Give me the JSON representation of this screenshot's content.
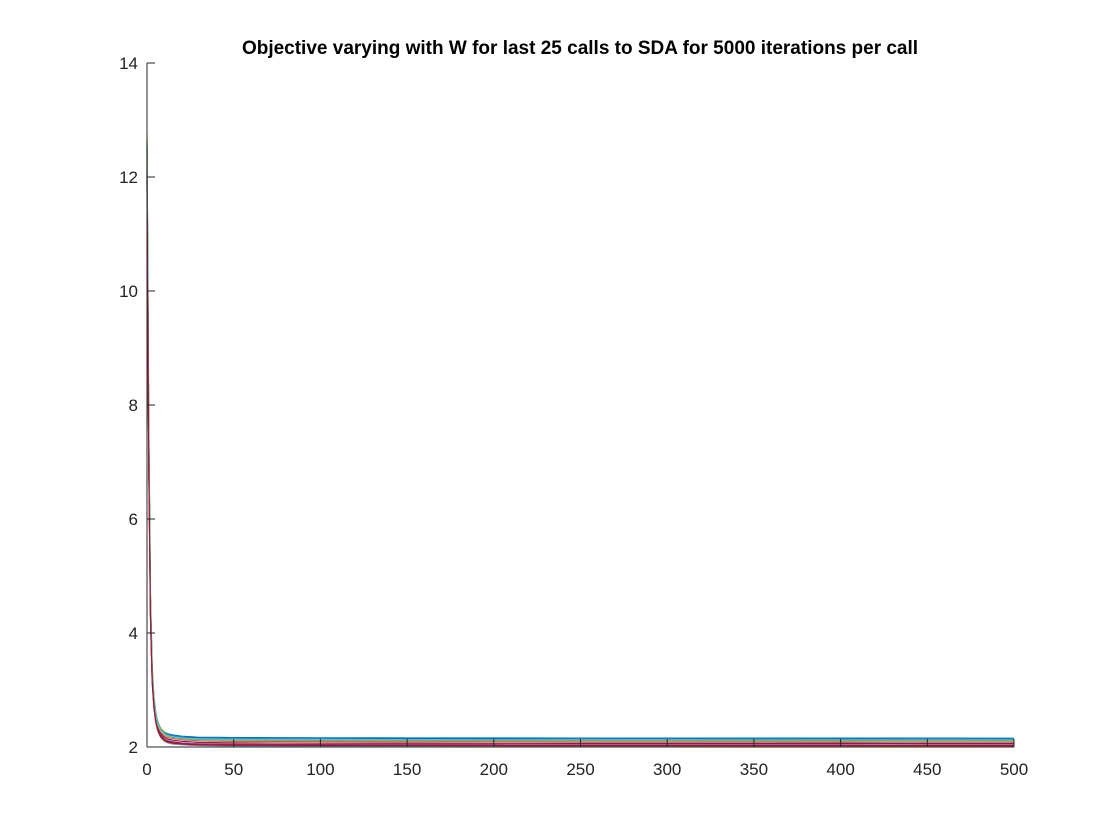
{
  "chart_data": {
    "type": "line",
    "title": "Objective varying with W for last 25 calls to SDA for 5000 iterations per call",
    "xlabel": "",
    "ylabel": "",
    "xlim": [
      0,
      500
    ],
    "ylim": [
      2,
      14
    ],
    "xticks": [
      0,
      50,
      100,
      150,
      200,
      250,
      300,
      350,
      400,
      450,
      500
    ],
    "yticks": [
      2,
      4,
      6,
      8,
      10,
      12,
      14
    ],
    "grid": false,
    "legend": "none",
    "x": [
      0,
      1,
      2,
      3,
      4,
      5,
      6,
      7,
      8,
      10,
      12,
      15,
      20,
      25,
      30,
      40,
      50,
      75,
      100,
      150,
      200,
      250,
      300,
      350,
      400,
      450,
      500
    ],
    "series": [
      {
        "color": "#0072bd",
        "values": [
          12.6,
          7.6,
          4.6,
          3.35,
          2.85,
          2.6,
          2.46,
          2.38,
          2.32,
          2.26,
          2.23,
          2.21,
          2.19,
          2.18,
          2.17,
          2.17,
          2.166,
          2.163,
          2.161,
          2.159,
          2.158,
          2.157,
          2.156,
          2.156,
          2.155,
          2.155,
          2.154
        ]
      },
      {
        "color": "#d95319",
        "values": [
          12.4,
          7.4,
          4.5,
          3.28,
          2.8,
          2.56,
          2.42,
          2.34,
          2.28,
          2.22,
          2.19,
          2.17,
          2.15,
          2.14,
          2.13,
          2.128,
          2.124,
          2.121,
          2.119,
          2.117,
          2.116,
          2.115,
          2.114,
          2.114,
          2.113,
          2.113,
          2.112
        ]
      },
      {
        "color": "#edb120",
        "values": [
          12.0,
          7.1,
          4.3,
          3.15,
          2.7,
          2.46,
          2.32,
          2.24,
          2.18,
          2.12,
          2.09,
          2.07,
          2.06,
          2.05,
          2.045,
          2.04,
          2.037,
          2.035,
          2.033,
          2.032,
          2.031,
          2.03,
          2.03,
          2.029,
          2.029,
          2.028,
          2.028
        ]
      },
      {
        "color": "#7e2f8e",
        "values": [
          12.2,
          7.3,
          4.45,
          3.25,
          2.78,
          2.54,
          2.4,
          2.32,
          2.26,
          2.2,
          2.17,
          2.15,
          2.13,
          2.12,
          2.11,
          2.105,
          2.101,
          2.098,
          2.096,
          2.094,
          2.093,
          2.092,
          2.091,
          2.091,
          2.09,
          2.09,
          2.089
        ]
      },
      {
        "color": "#77ac30",
        "values": [
          12.75,
          7.8,
          4.7,
          3.4,
          2.88,
          2.62,
          2.47,
          2.38,
          2.32,
          2.25,
          2.21,
          2.18,
          2.16,
          2.15,
          2.14,
          2.136,
          2.132,
          2.129,
          2.127,
          2.125,
          2.124,
          2.123,
          2.122,
          2.122,
          2.121,
          2.121,
          2.12
        ]
      },
      {
        "color": "#4dbeee",
        "values": [
          11.8,
          7.0,
          4.25,
          3.12,
          2.68,
          2.44,
          2.3,
          2.22,
          2.16,
          2.1,
          2.07,
          2.05,
          2.04,
          2.03,
          2.025,
          2.021,
          2.018,
          2.016,
          2.015,
          2.014,
          2.013,
          2.012,
          2.012,
          2.011,
          2.011,
          2.011,
          2.01
        ]
      },
      {
        "color": "#a2142f",
        "values": [
          12.1,
          7.2,
          4.4,
          3.22,
          2.75,
          2.51,
          2.37,
          2.29,
          2.23,
          2.17,
          2.14,
          2.12,
          2.1,
          2.09,
          2.08,
          2.076,
          2.072,
          2.069,
          2.067,
          2.066,
          2.065,
          2.064,
          2.064,
          2.063,
          2.063,
          2.062,
          2.062
        ]
      },
      {
        "color": "#0072bd",
        "values": [
          12.5,
          7.5,
          4.55,
          3.3,
          2.82,
          2.58,
          2.44,
          2.36,
          2.3,
          2.24,
          2.21,
          2.19,
          2.17,
          2.16,
          2.155,
          2.15,
          2.146,
          2.143,
          2.141,
          2.139,
          2.138,
          2.137,
          2.137,
          2.136,
          2.136,
          2.135,
          2.135
        ]
      },
      {
        "color": "#d95319",
        "values": [
          11.9,
          7.05,
          4.28,
          3.14,
          2.69,
          2.45,
          2.31,
          2.23,
          2.17,
          2.11,
          2.08,
          2.06,
          2.05,
          2.04,
          2.035,
          2.031,
          2.028,
          2.026,
          2.024,
          2.023,
          2.022,
          2.021,
          2.021,
          2.02,
          2.02,
          2.02,
          2.019
        ]
      },
      {
        "color": "#edb120",
        "values": [
          12.3,
          7.35,
          4.48,
          3.27,
          2.79,
          2.55,
          2.41,
          2.33,
          2.27,
          2.21,
          2.18,
          2.16,
          2.14,
          2.13,
          2.12,
          2.116,
          2.112,
          2.109,
          2.107,
          2.105,
          2.104,
          2.103,
          2.103,
          2.102,
          2.102,
          2.101,
          2.101
        ]
      },
      {
        "color": "#7e2f8e",
        "values": [
          12.05,
          7.15,
          4.35,
          3.18,
          2.72,
          2.48,
          2.34,
          2.26,
          2.2,
          2.14,
          2.11,
          2.09,
          2.07,
          2.06,
          2.055,
          2.05,
          2.046,
          2.043,
          2.041,
          2.04,
          2.039,
          2.038,
          2.038,
          2.037,
          2.037,
          2.036,
          2.036
        ]
      },
      {
        "color": "#77ac30",
        "values": [
          12.65,
          7.7,
          4.65,
          3.36,
          2.86,
          2.61,
          2.46,
          2.37,
          2.31,
          2.24,
          2.2,
          2.17,
          2.15,
          2.14,
          2.133,
          2.128,
          2.124,
          2.121,
          2.119,
          2.117,
          2.116,
          2.115,
          2.115,
          2.114,
          2.114,
          2.113,
          2.113
        ]
      },
      {
        "color": "#4dbeee",
        "values": [
          12.35,
          7.45,
          4.52,
          3.29,
          2.81,
          2.57,
          2.43,
          2.35,
          2.29,
          2.23,
          2.2,
          2.18,
          2.16,
          2.15,
          2.145,
          2.14,
          2.136,
          2.133,
          2.131,
          2.129,
          2.128,
          2.127,
          2.127,
          2.126,
          2.126,
          2.125,
          2.125
        ]
      },
      {
        "color": "#a2142f",
        "values": [
          11.95,
          7.08,
          4.3,
          3.16,
          2.7,
          2.46,
          2.32,
          2.24,
          2.18,
          2.12,
          2.09,
          2.07,
          2.055,
          2.045,
          2.04,
          2.036,
          2.033,
          2.031,
          2.029,
          2.028,
          2.027,
          2.026,
          2.026,
          2.025,
          2.025,
          2.025,
          2.024
        ]
      }
    ]
  }
}
